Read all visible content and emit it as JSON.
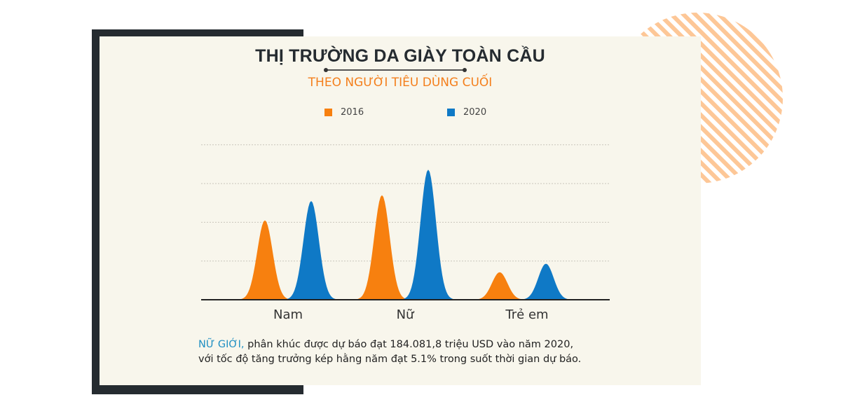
{
  "title": "THỊ TRƯỜNG DA GIÀY TOÀN CẦU",
  "subtitle": "THEO NGƯỜI TIÊU DÙNG CUỐI",
  "colors": {
    "s2016": "#f7800f",
    "s2020": "#0f79c6",
    "frame": "#252b30",
    "stripes": "#fdc797",
    "card": "#f8f6ec"
  },
  "chart_data": {
    "type": "area",
    "title": "THỊ TRƯỜNG DA GIÀY TOÀN CẦU",
    "subtitle": "THEO NGƯỜI TIÊU DÙNG CUỐI",
    "categories": [
      "Nam",
      "Nữ",
      "Trẻ em"
    ],
    "series": [
      {
        "name": "2016",
        "values": [
          2.05,
          2.7,
          0.71
        ]
      },
      {
        "name": "2020",
        "values": [
          2.55,
          3.36,
          0.93
        ]
      }
    ],
    "ylim": [
      0,
      4
    ],
    "grid": true,
    "legend": "top-center",
    "xlabel": "",
    "ylabel": ""
  },
  "note": {
    "highlight": "NỮ GIỚI,",
    "line1": " phân khúc được dự báo đạt 184.081,8 triệu USD vào năm 2020,",
    "line2": "với tốc độ tăng trưởng kép hằng năm đạt 5.1% trong suốt thời gian dự báo."
  }
}
